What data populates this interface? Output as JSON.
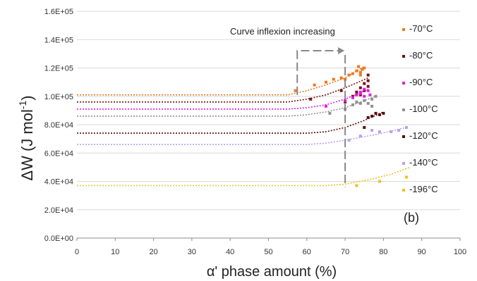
{
  "chart_data": {
    "type": "scatter",
    "xlabel": "α' phase amount (%)",
    "ylabel_main": "ΔW (J mol",
    "ylabel_sup": "-1",
    "ylabel_close": ")",
    "xlim": [
      0,
      100
    ],
    "ylim": [
      0,
      160000
    ],
    "x_ticks": [
      "0",
      "10",
      "20",
      "30",
      "40",
      "50",
      "60",
      "70",
      "80",
      "90",
      "100"
    ],
    "y_ticks": [
      "0.0E+00",
      "2.0E+04",
      "4.0E+04",
      "6.0E+04",
      "8.0E+04",
      "1.0E+05",
      "1.2E+05",
      "1.4E+05",
      "1.6E+05"
    ],
    "grid": "horizontal",
    "legend_position": "right",
    "annotation": "Curve inflexion increasing",
    "panel_label": "(b)",
    "series": [
      {
        "name": "-70°C",
        "color": "#f07820",
        "points": [
          [
            57,
            104000
          ],
          [
            62,
            108000
          ],
          [
            65,
            110000
          ],
          [
            67,
            112000
          ],
          [
            69,
            113000
          ],
          [
            70,
            112000
          ],
          [
            71,
            115000
          ],
          [
            72,
            116000
          ],
          [
            73,
            118000
          ],
          [
            73.5,
            121000
          ],
          [
            74,
            117000
          ],
          [
            74.5,
            119000
          ],
          [
            75,
            120000
          ],
          [
            74,
            115000
          ]
        ],
        "fit": [
          [
            0,
            101000
          ],
          [
            55,
            101000
          ],
          [
            60,
            104000
          ],
          [
            65,
            108000
          ],
          [
            70,
            113000
          ],
          [
            75,
            121000
          ]
        ]
      },
      {
        "name": "-80°C",
        "color": "#7a1010",
        "points": [
          [
            61,
            98000
          ],
          [
            69,
            104000
          ],
          [
            70,
            96000
          ],
          [
            72,
            100000
          ],
          [
            73,
            103000
          ],
          [
            74,
            106000
          ],
          [
            75,
            109000
          ],
          [
            76,
            111000
          ],
          [
            74,
            101000
          ],
          [
            75,
            104000
          ],
          [
            76,
            115000
          ],
          [
            76,
            107000
          ]
        ],
        "fit": [
          [
            0,
            96000
          ],
          [
            55,
            96000
          ],
          [
            60,
            98000
          ],
          [
            65,
            101000
          ],
          [
            70,
            106000
          ],
          [
            76,
            113000
          ]
        ]
      },
      {
        "name": "-90°C",
        "color": "#e020e0",
        "points": [
          [
            65,
            93000
          ],
          [
            70,
            97000
          ],
          [
            72,
            99000
          ],
          [
            73,
            101000
          ],
          [
            74,
            103000
          ],
          [
            75,
            105000
          ],
          [
            76,
            104000
          ],
          [
            76.5,
            101000
          ],
          [
            74,
            102000
          ],
          [
            75,
            100000
          ]
        ],
        "fit": [
          [
            0,
            91000
          ],
          [
            55,
            91000
          ],
          [
            60,
            92000
          ],
          [
            65,
            94000
          ],
          [
            70,
            98000
          ],
          [
            76,
            105000
          ]
        ]
      },
      {
        "name": "-100°C",
        "color": "#909090",
        "points": [
          [
            66,
            88000
          ],
          [
            70,
            91000
          ],
          [
            72,
            94000
          ],
          [
            73,
            96000
          ],
          [
            74,
            95000
          ],
          [
            75,
            97000
          ],
          [
            76,
            95000
          ],
          [
            77,
            98000
          ],
          [
            78,
            100000
          ],
          [
            77,
            93000
          ]
        ],
        "fit": [
          [
            0,
            86000
          ],
          [
            55,
            86000
          ],
          [
            60,
            87000
          ],
          [
            65,
            89000
          ],
          [
            70,
            92000
          ],
          [
            78,
            100000
          ]
        ]
      },
      {
        "name": "-120°C",
        "color": "#5a0a0a",
        "points": [
          [
            75,
            78000
          ],
          [
            76,
            85000
          ],
          [
            77,
            86000
          ],
          [
            78,
            88000
          ],
          [
            79,
            87000
          ],
          [
            80,
            88000
          ]
        ],
        "fit": [
          [
            0,
            74000
          ],
          [
            60,
            74000
          ],
          [
            65,
            75000
          ],
          [
            70,
            78000
          ],
          [
            75,
            83000
          ],
          [
            80,
            89000
          ]
        ]
      },
      {
        "name": "-140°C",
        "color": "#b8a0f0",
        "points": [
          [
            71,
            69000
          ],
          [
            74,
            72000
          ],
          [
            77,
            76000
          ],
          [
            79,
            75000
          ],
          [
            82,
            75000
          ],
          [
            84,
            76000
          ],
          [
            86,
            78000
          ]
        ],
        "fit": [
          [
            0,
            66000
          ],
          [
            60,
            66000
          ],
          [
            65,
            67000
          ],
          [
            70,
            69000
          ],
          [
            78,
            73000
          ],
          [
            86,
            78000
          ]
        ]
      },
      {
        "name": "-196°C",
        "color": "#f0c020",
        "points": [
          [
            73,
            37000
          ],
          [
            79,
            40000
          ],
          [
            86,
            43000
          ]
        ],
        "fit": [
          [
            0,
            37000
          ],
          [
            65,
            37000
          ],
          [
            70,
            38000
          ],
          [
            76,
            41000
          ],
          [
            82,
            45000
          ],
          [
            87,
            50000
          ]
        ]
      }
    ]
  }
}
